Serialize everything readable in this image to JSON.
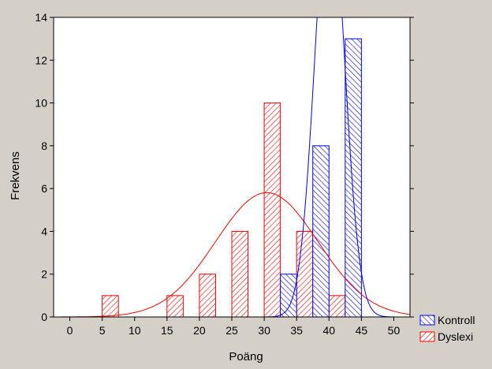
{
  "chart_data": {
    "type": "bar",
    "xlabel": "Poäng",
    "ylabel": "Frekvens",
    "xlim": [
      -2.5,
      52.5
    ],
    "ylim": [
      0,
      14
    ],
    "x_ticks": [
      "0",
      "5",
      "10",
      "15",
      "20",
      "25",
      "30",
      "35",
      "40",
      "45",
      "50"
    ],
    "y_ticks": [
      "0",
      "2",
      "4",
      "6",
      "8",
      "10",
      "12",
      "14"
    ],
    "bin_width": 5,
    "grid": false,
    "legend_position": "bottom-right outside",
    "series": [
      {
        "name": "Kontroll",
        "color": "#0000ff",
        "hatch": "diagonal-up",
        "bins": [
          {
            "x": 30,
            "count": 2
          },
          {
            "x": 35,
            "count": 8
          },
          {
            "x": 40,
            "count": 13
          }
        ],
        "normal_fit": {
          "mean": 40.1,
          "sd": 2.3,
          "n": 23
        }
      },
      {
        "name": "Dyslexi",
        "color": "#ff0000",
        "hatch": "diagonal-down",
        "bins": [
          {
            "x": 5,
            "count": 1
          },
          {
            "x": 15,
            "count": 1
          },
          {
            "x": 20,
            "count": 2
          },
          {
            "x": 25,
            "count": 4
          },
          {
            "x": 30,
            "count": 10
          },
          {
            "x": 35,
            "count": 4
          },
          {
            "x": 40,
            "count": 1
          }
        ],
        "normal_fit": {
          "mean": 30.4,
          "sd": 7.9,
          "n": 23
        }
      }
    ]
  }
}
